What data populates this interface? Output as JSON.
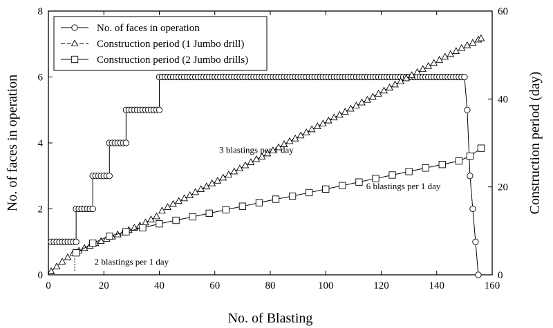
{
  "chart_data": {
    "type": "line",
    "x_axis": {
      "label": "No. of Blasting",
      "range": [
        0,
        160
      ],
      "ticks": [
        0,
        20,
        40,
        60,
        80,
        100,
        120,
        140,
        160
      ]
    },
    "y_axis_left": {
      "label": "No. of faces in operation",
      "range": [
        0,
        8
      ],
      "ticks": [
        0,
        2,
        4,
        6,
        8
      ]
    },
    "y_axis_right": {
      "label": "Construction period (day)",
      "range": [
        0,
        60
      ],
      "ticks": [
        0,
        20,
        40,
        60
      ]
    },
    "grid": false,
    "legend_position": "top-left",
    "series": [
      {
        "name": "No. of faces in operation",
        "axis": "left",
        "marker": "circle",
        "line_style": "solid",
        "points": [
          [
            1,
            1
          ],
          [
            2,
            1
          ],
          [
            3,
            1
          ],
          [
            4,
            1
          ],
          [
            5,
            1
          ],
          [
            6,
            1
          ],
          [
            7,
            1
          ],
          [
            8,
            1
          ],
          [
            9,
            1
          ],
          [
            10,
            1
          ],
          [
            10,
            2
          ],
          [
            11,
            2
          ],
          [
            12,
            2
          ],
          [
            13,
            2
          ],
          [
            14,
            2
          ],
          [
            15,
            2
          ],
          [
            16,
            2
          ],
          [
            16,
            3
          ],
          [
            17,
            3
          ],
          [
            18,
            3
          ],
          [
            19,
            3
          ],
          [
            20,
            3
          ],
          [
            21,
            3
          ],
          [
            22,
            3
          ],
          [
            22,
            4
          ],
          [
            23,
            4
          ],
          [
            24,
            4
          ],
          [
            25,
            4
          ],
          [
            26,
            4
          ],
          [
            27,
            4
          ],
          [
            28,
            4
          ],
          [
            28,
            5
          ],
          [
            29,
            5
          ],
          [
            30,
            5
          ],
          [
            31,
            5
          ],
          [
            32,
            5
          ],
          [
            33,
            5
          ],
          [
            34,
            5
          ],
          [
            35,
            5
          ],
          [
            36,
            5
          ],
          [
            37,
            5
          ],
          [
            38,
            5
          ],
          [
            39,
            5
          ],
          [
            40,
            5
          ],
          [
            40,
            6
          ],
          [
            41,
            6
          ],
          [
            42,
            6
          ],
          [
            43,
            6
          ],
          [
            44,
            6
          ],
          [
            45,
            6
          ],
          [
            46,
            6
          ],
          [
            47,
            6
          ],
          [
            48,
            6
          ],
          [
            49,
            6
          ],
          [
            50,
            6
          ],
          [
            51,
            6
          ],
          [
            52,
            6
          ],
          [
            53,
            6
          ],
          [
            54,
            6
          ],
          [
            55,
            6
          ],
          [
            56,
            6
          ],
          [
            57,
            6
          ],
          [
            58,
            6
          ],
          [
            59,
            6
          ],
          [
            60,
            6
          ],
          [
            61,
            6
          ],
          [
            62,
            6
          ],
          [
            63,
            6
          ],
          [
            64,
            6
          ],
          [
            65,
            6
          ],
          [
            66,
            6
          ],
          [
            67,
            6
          ],
          [
            68,
            6
          ],
          [
            69,
            6
          ],
          [
            70,
            6
          ],
          [
            71,
            6
          ],
          [
            72,
            6
          ],
          [
            73,
            6
          ],
          [
            74,
            6
          ],
          [
            75,
            6
          ],
          [
            76,
            6
          ],
          [
            77,
            6
          ],
          [
            78,
            6
          ],
          [
            79,
            6
          ],
          [
            80,
            6
          ],
          [
            81,
            6
          ],
          [
            82,
            6
          ],
          [
            83,
            6
          ],
          [
            84,
            6
          ],
          [
            85,
            6
          ],
          [
            86,
            6
          ],
          [
            87,
            6
          ],
          [
            88,
            6
          ],
          [
            89,
            6
          ],
          [
            90,
            6
          ],
          [
            91,
            6
          ],
          [
            92,
            6
          ],
          [
            93,
            6
          ],
          [
            94,
            6
          ],
          [
            95,
            6
          ],
          [
            96,
            6
          ],
          [
            97,
            6
          ],
          [
            98,
            6
          ],
          [
            99,
            6
          ],
          [
            100,
            6
          ],
          [
            101,
            6
          ],
          [
            102,
            6
          ],
          [
            103,
            6
          ],
          [
            104,
            6
          ],
          [
            105,
            6
          ],
          [
            106,
            6
          ],
          [
            107,
            6
          ],
          [
            108,
            6
          ],
          [
            109,
            6
          ],
          [
            110,
            6
          ],
          [
            111,
            6
          ],
          [
            112,
            6
          ],
          [
            113,
            6
          ],
          [
            114,
            6
          ],
          [
            115,
            6
          ],
          [
            116,
            6
          ],
          [
            117,
            6
          ],
          [
            118,
            6
          ],
          [
            119,
            6
          ],
          [
            120,
            6
          ],
          [
            121,
            6
          ],
          [
            122,
            6
          ],
          [
            123,
            6
          ],
          [
            124,
            6
          ],
          [
            125,
            6
          ],
          [
            126,
            6
          ],
          [
            127,
            6
          ],
          [
            128,
            6
          ],
          [
            129,
            6
          ],
          [
            130,
            6
          ],
          [
            131,
            6
          ],
          [
            132,
            6
          ],
          [
            133,
            6
          ],
          [
            134,
            6
          ],
          [
            135,
            6
          ],
          [
            136,
            6
          ],
          [
            137,
            6
          ],
          [
            138,
            6
          ],
          [
            139,
            6
          ],
          [
            140,
            6
          ],
          [
            141,
            6
          ],
          [
            142,
            6
          ],
          [
            143,
            6
          ],
          [
            144,
            6
          ],
          [
            145,
            6
          ],
          [
            146,
            6
          ],
          [
            147,
            6
          ],
          [
            148,
            6
          ],
          [
            149,
            6
          ],
          [
            150,
            6
          ],
          [
            151,
            5
          ],
          [
            152,
            3
          ],
          [
            153,
            2
          ],
          [
            154,
            1
          ],
          [
            155,
            0
          ]
        ]
      },
      {
        "name": "Construction period (1 Jumbo drill)",
        "axis": "right",
        "marker": "triangle",
        "line_style": "dashed",
        "points": [
          [
            1,
            0.8
          ],
          [
            3,
            1.9
          ],
          [
            5,
            3.0
          ],
          [
            7,
            4.0
          ],
          [
            9,
            5.0
          ],
          [
            11,
            5.5
          ],
          [
            13,
            6.1
          ],
          [
            15,
            6.6
          ],
          [
            17,
            7.2
          ],
          [
            19,
            7.7
          ],
          [
            21,
            8.2
          ],
          [
            23,
            8.7
          ],
          [
            25,
            9.2
          ],
          [
            27,
            9.6
          ],
          [
            29,
            10.2
          ],
          [
            31,
            10.7
          ],
          [
            33,
            11.2
          ],
          [
            35,
            11.9
          ],
          [
            37,
            12.6
          ],
          [
            39,
            13.3
          ],
          [
            41,
            14.6
          ],
          [
            43,
            15.4
          ],
          [
            45,
            16.1
          ],
          [
            47,
            16.8
          ],
          [
            49,
            17.4
          ],
          [
            51,
            18.1
          ],
          [
            53,
            18.8
          ],
          [
            55,
            19.5
          ],
          [
            57,
            20.1
          ],
          [
            59,
            20.8
          ],
          [
            61,
            21.4
          ],
          [
            63,
            22.1
          ],
          [
            65,
            22.8
          ],
          [
            67,
            23.5
          ],
          [
            69,
            24.2
          ],
          [
            71,
            24.9
          ],
          [
            73,
            25.6
          ],
          [
            75,
            26.3
          ],
          [
            77,
            26.9
          ],
          [
            79,
            27.6
          ],
          [
            81,
            28.3
          ],
          [
            83,
            29.0
          ],
          [
            85,
            29.7
          ],
          [
            87,
            30.4
          ],
          [
            89,
            31.0
          ],
          [
            91,
            31.7
          ],
          [
            93,
            32.4
          ],
          [
            95,
            33.1
          ],
          [
            97,
            33.8
          ],
          [
            99,
            34.4
          ],
          [
            101,
            35.1
          ],
          [
            103,
            35.8
          ],
          [
            105,
            36.4
          ],
          [
            107,
            37.1
          ],
          [
            109,
            37.8
          ],
          [
            111,
            38.5
          ],
          [
            113,
            39.2
          ],
          [
            115,
            39.8
          ],
          [
            117,
            40.5
          ],
          [
            119,
            41.2
          ],
          [
            121,
            41.9
          ],
          [
            123,
            42.6
          ],
          [
            125,
            43.3
          ],
          [
            127,
            44.0
          ],
          [
            129,
            44.7
          ],
          [
            131,
            45.4
          ],
          [
            133,
            46.1
          ],
          [
            135,
            46.8
          ],
          [
            137,
            47.5
          ],
          [
            139,
            48.2
          ],
          [
            141,
            48.9
          ],
          [
            143,
            49.6
          ],
          [
            145,
            50.2
          ],
          [
            147,
            50.9
          ],
          [
            149,
            51.6
          ],
          [
            151,
            52.2
          ],
          [
            153,
            52.8
          ],
          [
            155,
            53.5
          ],
          [
            156,
            53.8
          ]
        ]
      },
      {
        "name": "Construction period (2 Jumbo drills)",
        "axis": "right",
        "marker": "square",
        "line_style": "solid",
        "points": [
          [
            10,
            5.0
          ],
          [
            16,
            7.2
          ],
          [
            22,
            8.8
          ],
          [
            28,
            9.8
          ],
          [
            34,
            10.7
          ],
          [
            40,
            11.6
          ],
          [
            46,
            12.4
          ],
          [
            52,
            13.2
          ],
          [
            58,
            14.0
          ],
          [
            64,
            14.8
          ],
          [
            70,
            15.6
          ],
          [
            76,
            16.4
          ],
          [
            82,
            17.2
          ],
          [
            88,
            17.9
          ],
          [
            94,
            18.7
          ],
          [
            100,
            19.5
          ],
          [
            106,
            20.3
          ],
          [
            112,
            21.1
          ],
          [
            118,
            21.9
          ],
          [
            124,
            22.7
          ],
          [
            130,
            23.5
          ],
          [
            136,
            24.3
          ],
          [
            142,
            25.1
          ],
          [
            148,
            25.9
          ],
          [
            152,
            27.0
          ],
          [
            156,
            28.8
          ]
        ]
      }
    ],
    "annotations": [
      {
        "text": "3 blastings per 1 day",
        "x": 75,
        "y_left": 3.7
      },
      {
        "text": "6 blastings per 1 day",
        "x": 128,
        "y_left": 2.6
      },
      {
        "text": "2 blastings per 1 day",
        "x": 30,
        "y_left": 0.3
      }
    ]
  }
}
